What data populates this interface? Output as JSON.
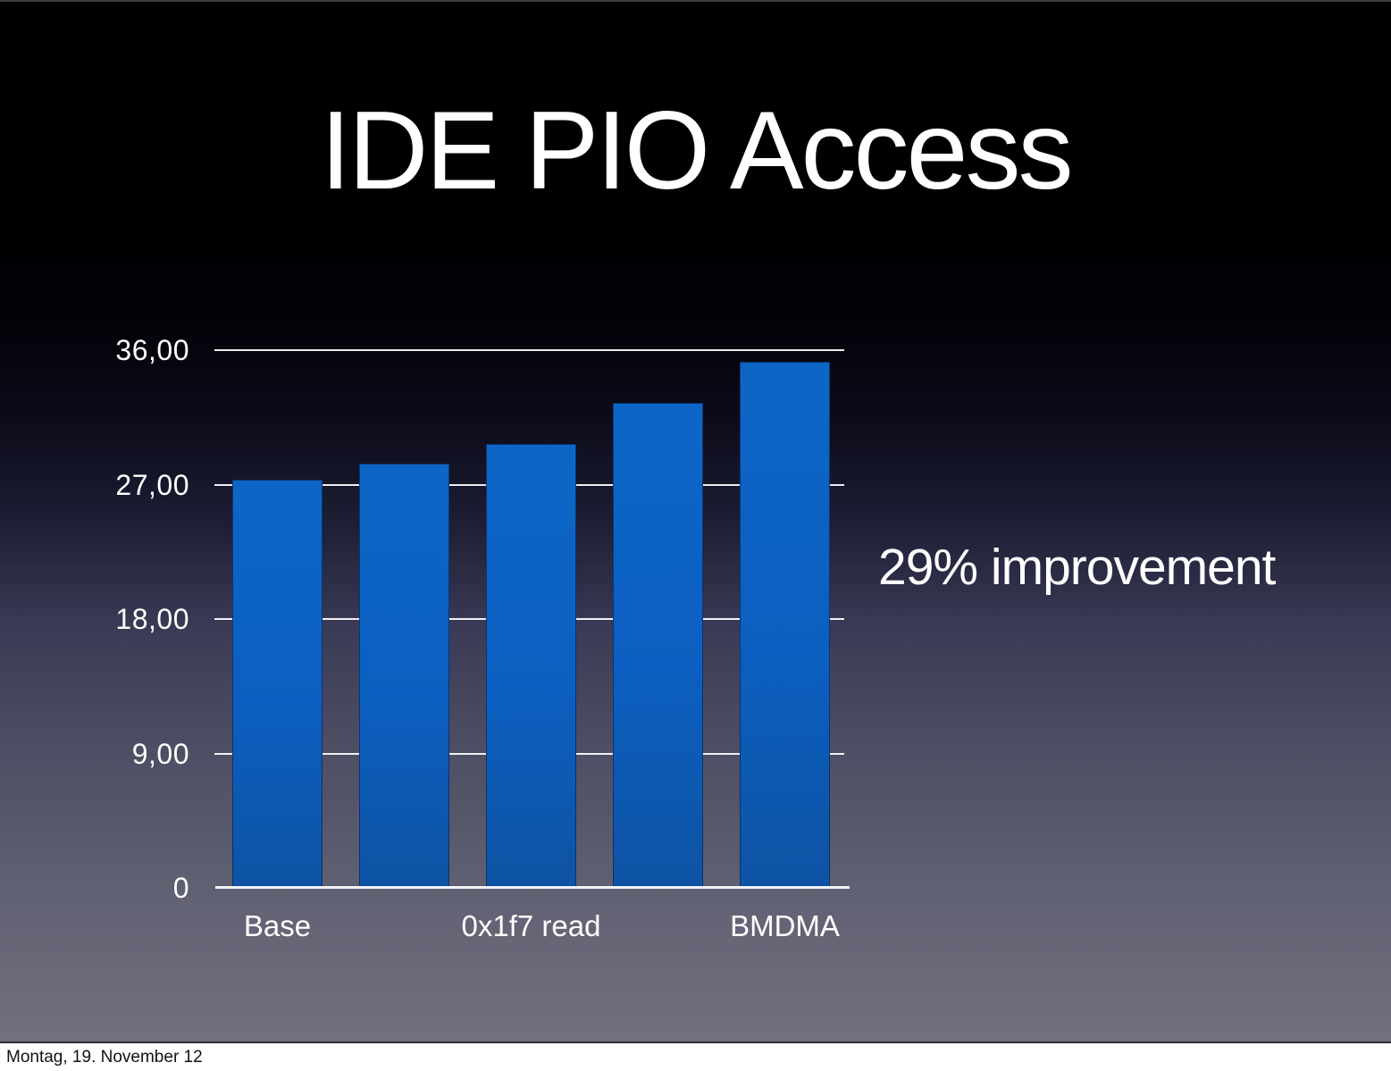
{
  "slide": {
    "title": "IDE PIO Access",
    "annotation": "29% improvement"
  },
  "footer": {
    "date": "Montag, 19. November 12"
  },
  "colors": {
    "bar_blue": "#0b60bc",
    "slide_text": "#ffffff",
    "background_top": "#000000",
    "background_bottom": "#70707e",
    "gridline": "#ffffff",
    "footer_background": "#ffffff",
    "footer_text": "#121212"
  },
  "chart_data": {
    "type": "bar",
    "title": "IDE PIO Access",
    "categories": [
      "Base",
      "",
      "0x1f7 read",
      "",
      "BMDMA"
    ],
    "values": [
      27.3,
      28.4,
      29.7,
      32.5,
      35.2
    ],
    "y_ticks": [
      0,
      9,
      18,
      27,
      36
    ],
    "y_tick_labels": [
      "0",
      "9,00",
      "18,00",
      "27,00",
      "36,00"
    ],
    "ylim": [
      0,
      36
    ],
    "xlabel": "",
    "ylabel": "",
    "grid": true,
    "legend": false,
    "bar_color": "#0b60bc",
    "annotation": "29% improvement"
  }
}
